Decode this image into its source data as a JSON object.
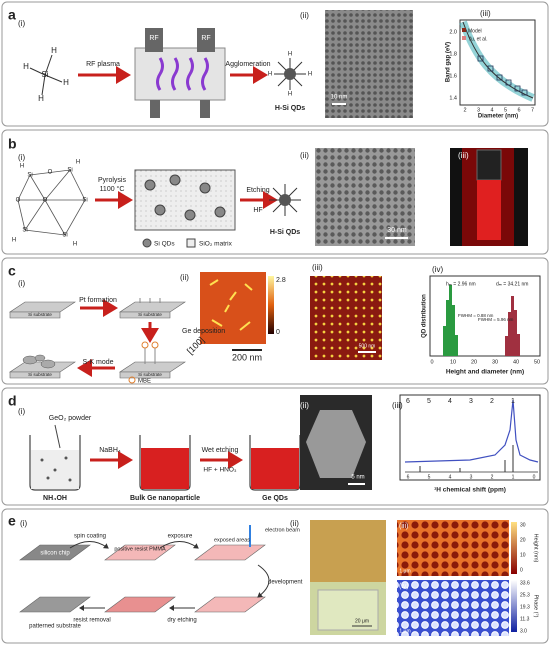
{
  "a": {
    "label": "a",
    "i": "(i)",
    "ii": "(ii)",
    "iii": "(iii)",
    "silane_h": "H",
    "silane_si": "Si",
    "rf_plasma": "RF plasma",
    "agglomeration": "Agglomeration",
    "rf": "RF",
    "product": "H-Si QDs",
    "qd_h": "H",
    "scale": "10 nm",
    "ylabel": "Band gap (eV)",
    "xlabel": "Diameter (nm)",
    "legend": [
      "Model",
      "Yu, et al."
    ],
    "xticks": [
      "2",
      "3",
      "4",
      "5",
      "6",
      "7"
    ],
    "yticks": [
      "1.4",
      "1.6",
      "1.8",
      "2.0"
    ]
  },
  "b": {
    "label": "b",
    "i": "(i)",
    "ii": "(ii)",
    "iii": "(iii)",
    "atom_si": "Si",
    "atom_o": "O",
    "atom_h": "H",
    "pyrolysis": "Pyrolysis",
    "temp": "1100 °C",
    "etching": "Etching",
    "hf": "HF",
    "legend": [
      "Si QDs",
      "SiO₂ matrix"
    ],
    "product": "H-Si QDs",
    "scale": "30 nm"
  },
  "c": {
    "label": "c",
    "i": "(i)",
    "ii": "(ii)",
    "iii": "(iii)",
    "iv": "(iv)",
    "substrate": "Si substrate",
    "pt": "Pt formation",
    "ge": "Ge deposition",
    "sk": "S-K mode",
    "mbe": "MBE",
    "direction": "[100]",
    "scale_ii": "200 nm",
    "cbar": [
      "2.8",
      "0"
    ],
    "scale_iii": "500 nm",
    "hm": "hₘ = 2.96 nm",
    "dm": "dₘ = 34.21 nm",
    "fwhm1": "FWHM = 0.88 nm",
    "fwhm2": "FWHM = 5.96 nm",
    "ylabel": "QD distribution",
    "xlabel": "Height and diameter (nm)",
    "xticks": [
      "0",
      "10",
      "20",
      "30",
      "40",
      "50"
    ]
  },
  "d": {
    "label": "d",
    "i": "(i)",
    "ii": "(ii)",
    "iii": "(iii)",
    "geo2": "GeO₂ powder",
    "nabh4": "NaBH₄",
    "wet": "Wet etching",
    "acid": "HF + HNO₃",
    "nh4oh": "NH₄OH",
    "bulk": "Bulk Ge nanoparticle",
    "product": "Ge QDs",
    "scale": "5 nm",
    "peaks": [
      "6",
      "5",
      "4",
      "3",
      "2",
      "1"
    ],
    "xlabel": "¹H chemical shift (ppm)",
    "xticks": [
      "6",
      "5",
      "4",
      "3",
      "2",
      "1",
      "0"
    ]
  },
  "e": {
    "label": "e",
    "i": "(i)",
    "ii": "(ii)",
    "iii": "(iii)",
    "iv": "(iv)",
    "chip": "silicon chip",
    "spin": "spin coating",
    "resist": "positive resist PMMA",
    "exposure": "exposure",
    "exposed": "exposed areas",
    "beam": "electron beam",
    "development": "development",
    "dry": "dry etching",
    "removal": "resist removal",
    "patterned": "patterned substrate",
    "scale_ii": "20 μm",
    "scale_iii": "1 μm",
    "scale_iv": "1 μm",
    "height": "Height (nm)",
    "phase": "Phase (°)",
    "hticks": [
      "30",
      "20",
      "10",
      "0"
    ],
    "pticks": [
      "33.6",
      "25.3",
      "19.3",
      "11.3",
      "3.0"
    ]
  }
}
